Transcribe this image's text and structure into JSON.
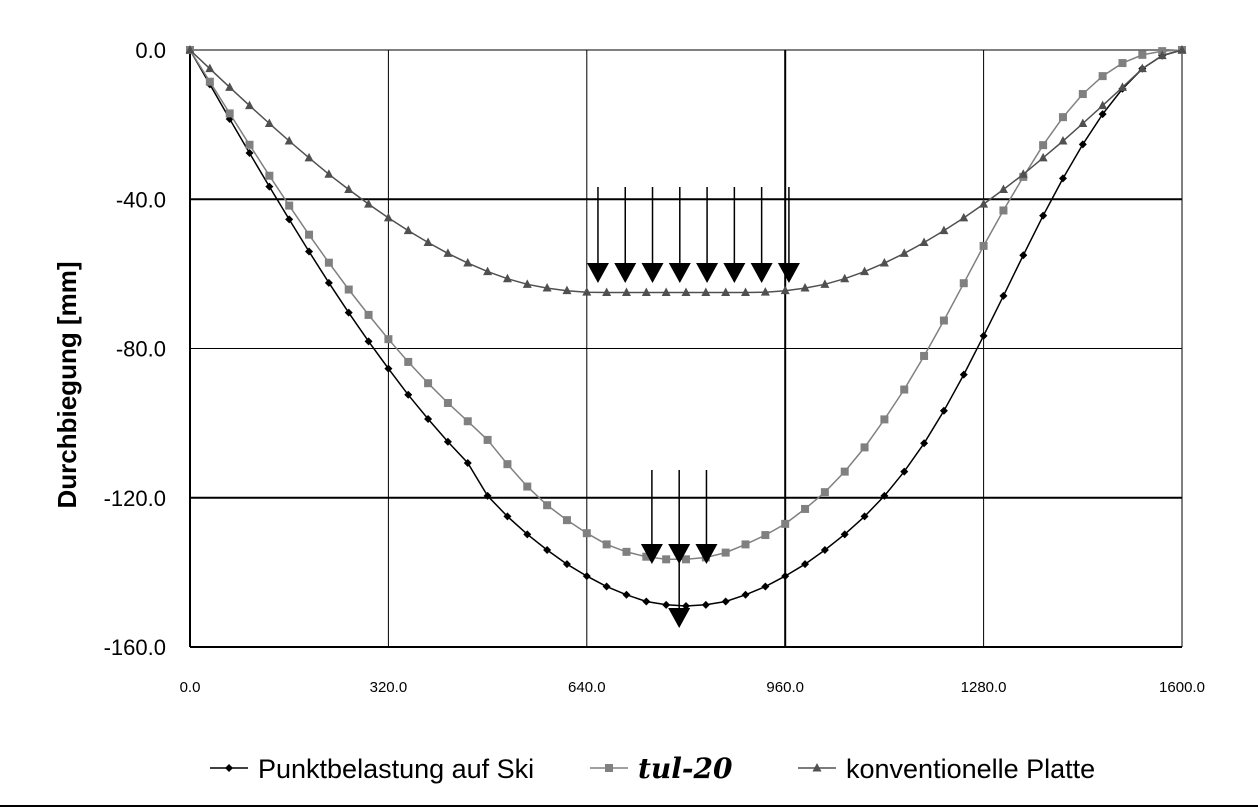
{
  "chart_data": {
    "type": "line",
    "title": "",
    "xlabel": "",
    "ylabel": "Durchbiegung [mm]",
    "xlim": [
      0,
      1600
    ],
    "ylim": [
      -160,
      0
    ],
    "x_ticks": [
      "0.0",
      "320.0",
      "640.0",
      "960.0",
      "1280.0",
      "1600.0"
    ],
    "y_ticks": [
      "0.0",
      "-40.0",
      "-80.0",
      "-120.0",
      "-160.0"
    ],
    "grid": true,
    "legend_position": "bottom",
    "series": [
      {
        "name": "Punktbelastung auf Ski",
        "marker": "diamond",
        "color": "#000000",
        "x": [
          0,
          32,
          64,
          96,
          128,
          160,
          192,
          224,
          256,
          288,
          320,
          352,
          384,
          416,
          448,
          480,
          512,
          544,
          576,
          608,
          640,
          672,
          704,
          736,
          768,
          800,
          832,
          864,
          896,
          928,
          960,
          992,
          1024,
          1056,
          1088,
          1120,
          1152,
          1184,
          1216,
          1248,
          1280,
          1312,
          1344,
          1376,
          1408,
          1440,
          1472,
          1504,
          1536,
          1568,
          1600
        ],
        "y": [
          0,
          -9.2,
          -18.5,
          -27.6,
          -36.6,
          -45.4,
          -54.0,
          -62.4,
          -70.4,
          -78.1,
          -85.4,
          -92.4,
          -98.9,
          -105.0,
          -110.7,
          -119.5,
          -125.0,
          -129.8,
          -134.0,
          -137.8,
          -141.0,
          -143.8,
          -146.0,
          -147.8,
          -148.7,
          -149.0,
          -148.7,
          -147.8,
          -146.0,
          -143.8,
          -141.0,
          -137.8,
          -134.0,
          -129.8,
          -125.0,
          -119.5,
          -113.0,
          -105.4,
          -96.7,
          -87.0,
          -76.6,
          -65.9,
          -55.0,
          -44.4,
          -34.4,
          -25.3,
          -17.2,
          -10.4,
          -5.0,
          -1.5,
          0
        ],
        "point_load_x": 789
      },
      {
        "name": "tul-20",
        "marker": "square",
        "color": "#808080",
        "x": [
          0,
          32,
          64,
          96,
          128,
          160,
          192,
          224,
          256,
          288,
          320,
          352,
          384,
          416,
          448,
          480,
          512,
          544,
          576,
          608,
          640,
          672,
          704,
          736,
          768,
          800,
          832,
          864,
          896,
          928,
          960,
          992,
          1024,
          1056,
          1088,
          1120,
          1152,
          1184,
          1216,
          1248,
          1280,
          1312,
          1344,
          1376,
          1408,
          1440,
          1472,
          1504,
          1536,
          1568,
          1600
        ],
        "y": [
          0,
          -8.5,
          -17.0,
          -25.4,
          -33.7,
          -41.7,
          -49.5,
          -57.0,
          -64.2,
          -71.0,
          -77.5,
          -83.6,
          -89.3,
          -94.6,
          -99.5,
          -104.5,
          -111.0,
          -117.0,
          -122.0,
          -126.0,
          -129.5,
          -132.5,
          -134.5,
          -135.8,
          -136.5,
          -136.5,
          -136.0,
          -134.7,
          -132.5,
          -130.0,
          -127.0,
          -123.0,
          -118.5,
          -113.0,
          -106.5,
          -99.0,
          -91.0,
          -82.0,
          -72.5,
          -62.5,
          -52.5,
          -43.0,
          -34.0,
          -25.5,
          -18.0,
          -11.8,
          -7.0,
          -3.5,
          -1.3,
          -0.3,
          0
        ],
        "distributed_load_x": [
          745,
          789,
          833
        ]
      },
      {
        "name": "konventionelle Platte",
        "marker": "triangle",
        "color": "#505050",
        "x": [
          0,
          32,
          64,
          96,
          128,
          160,
          192,
          224,
          256,
          288,
          320,
          352,
          384,
          416,
          448,
          480,
          512,
          544,
          576,
          608,
          640,
          672,
          704,
          736,
          768,
          800,
          832,
          864,
          896,
          928,
          960,
          992,
          1024,
          1056,
          1088,
          1120,
          1152,
          1184,
          1216,
          1248,
          1280,
          1312,
          1344,
          1376,
          1408,
          1440,
          1472,
          1504,
          1536,
          1568,
          1600
        ],
        "y": [
          0,
          -5.0,
          -10.0,
          -14.9,
          -19.7,
          -24.4,
          -28.9,
          -33.3,
          -37.4,
          -41.3,
          -45.0,
          -48.4,
          -51.6,
          -54.5,
          -57.1,
          -59.4,
          -61.3,
          -62.8,
          -63.8,
          -64.5,
          -64.9,
          -65.0,
          -65.0,
          -65.0,
          -65.0,
          -65.0,
          -65.0,
          -65.0,
          -65.0,
          -64.9,
          -64.5,
          -63.8,
          -62.8,
          -61.3,
          -59.4,
          -57.1,
          -54.5,
          -51.6,
          -48.4,
          -45.0,
          -41.3,
          -37.4,
          -33.3,
          -28.9,
          -24.4,
          -19.7,
          -14.9,
          -10.0,
          -5.0,
          -1.5,
          0
        ],
        "distributed_load_x": [
          658,
          702,
          746,
          790,
          834,
          878,
          922,
          966
        ]
      }
    ]
  }
}
